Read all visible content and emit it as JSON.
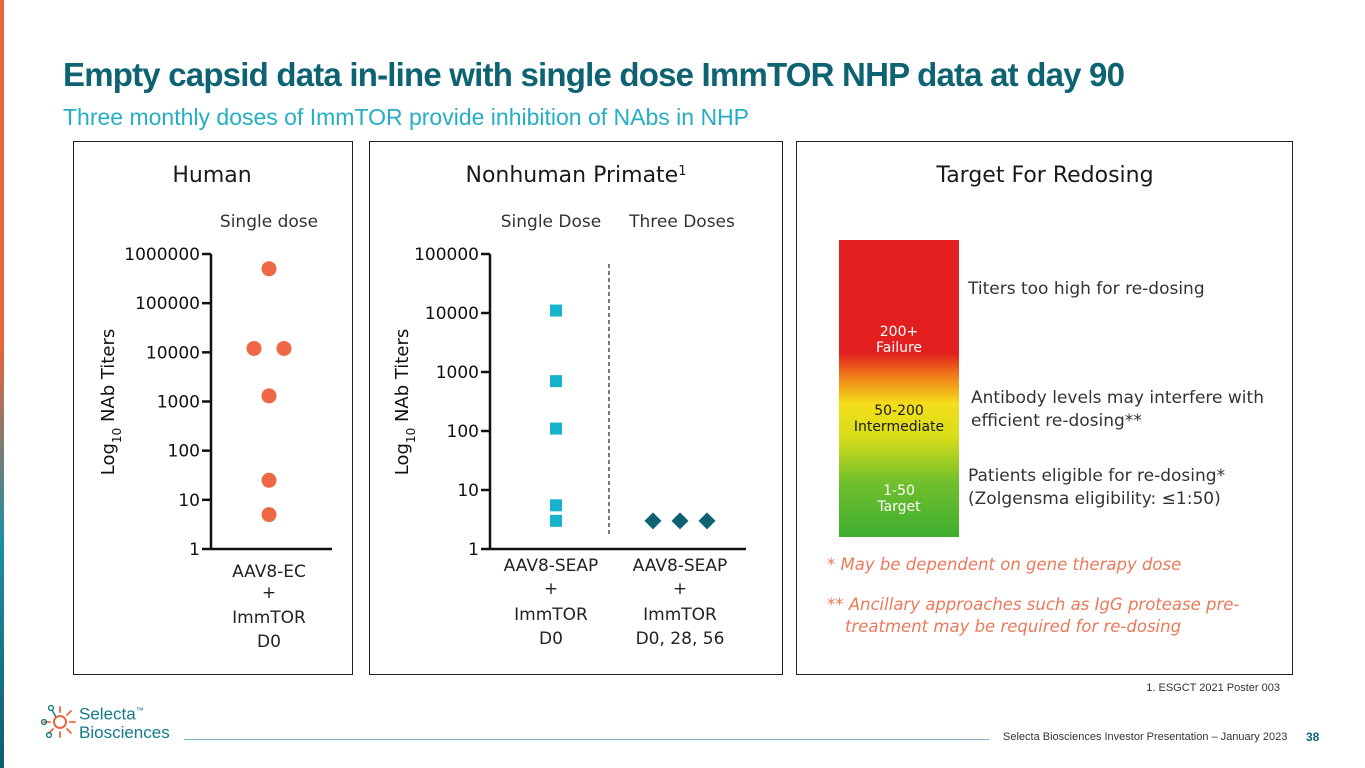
{
  "header": {
    "title": "Empty capsid data in-line with single dose ImmTOR NHP data at day 90",
    "subtitle": "Three monthly doses of ImmTOR provide inhibition of NAbs in NHP"
  },
  "colors": {
    "title": "#0e6373",
    "subtitle": "#25aec4",
    "human_marker": "#ee6845",
    "nhp_single_marker": "#17b3cd",
    "nhp_three_marker": "#0e6373",
    "note": "#ea7a5a"
  },
  "chart_data": [
    {
      "type": "scatter",
      "title": "Human",
      "ylabel": "Log10 NAb Titers",
      "ylabel_base": "Log",
      "ylabel_sub": "10",
      "ylabel_rest": " NAb Titers",
      "yscale": "log10",
      "ylim": [
        1,
        1000000
      ],
      "yticks": [
        "1",
        "10",
        "100",
        "1000",
        "10000",
        "100000",
        "1000000"
      ],
      "groups": [
        {
          "header": "Single dose",
          "xlabel_lines": [
            "AAV8-EC",
            "+",
            "ImmTOR",
            "D0"
          ],
          "marker": "circle",
          "points": [
            {
              "y": 500000,
              "jitter": 0
            },
            {
              "y": 12000,
              "jitter": -1
            },
            {
              "y": 12000,
              "jitter": 1
            },
            {
              "y": 1300,
              "jitter": 0
            },
            {
              "y": 25,
              "jitter": 0
            },
            {
              "y": 5,
              "jitter": 0
            }
          ]
        }
      ]
    },
    {
      "type": "scatter",
      "title": "Nonhuman Primate",
      "title_sup": "1",
      "ylabel": "Log10 NAb Titers",
      "ylabel_base": "Log",
      "ylabel_sub": "10",
      "ylabel_rest": " NAb Titers",
      "yscale": "log10",
      "ylim": [
        1,
        100000
      ],
      "yticks": [
        "1",
        "10",
        "100",
        "1000",
        "10000",
        "100000"
      ],
      "groups": [
        {
          "header": "Single Dose",
          "xlabel_lines": [
            "AAV8-SEAP",
            "+",
            "ImmTOR",
            "D0"
          ],
          "marker": "square",
          "points": [
            {
              "y": 11000,
              "jitter": 0
            },
            {
              "y": 700,
              "jitter": 0
            },
            {
              "y": 110,
              "jitter": 0
            },
            {
              "y": 5.5,
              "jitter": 0
            },
            {
              "y": 3,
              "jitter": 0
            }
          ]
        },
        {
          "header": "Three Doses",
          "xlabel_lines": [
            "AAV8-SEAP",
            "+",
            "ImmTOR",
            "D0, 28, 56"
          ],
          "marker": "diamond",
          "points": [
            {
              "y": 3,
              "jitter": -1
            },
            {
              "y": 3,
              "jitter": 0
            },
            {
              "y": 3,
              "jitter": 1
            }
          ]
        }
      ]
    }
  ],
  "target": {
    "title": "Target For Redosing",
    "zones": [
      {
        "line1": "200+",
        "line2": "Failure",
        "description": "Titers too high for re-dosing"
      },
      {
        "line1": "50-200",
        "line2": "Intermediate",
        "description_lines": [
          "Antibody levels may interfere with",
          "efficient re-dosing**"
        ]
      },
      {
        "line1": "1-50",
        "line2": "Target",
        "description_lines": [
          "Patients eligible for re-dosing*",
          "(Zolgensma eligibility: ≤1:50)"
        ]
      }
    ],
    "notes": [
      {
        "line1": "*  May be dependent on gene therapy dose"
      },
      {
        "line1": "** Ancillary approaches such as IgG protease pre-",
        "line2": "treatment may be required for re-dosing"
      }
    ]
  },
  "footnote": "1. ESGCT 2021 Poster 003",
  "footer": {
    "logo_line1": "Selecta",
    "logo_tm": "™",
    "logo_line2": "Biosciences",
    "presentation": "Selecta Biosciences Investor Presentation – January 2023",
    "page": "38"
  }
}
